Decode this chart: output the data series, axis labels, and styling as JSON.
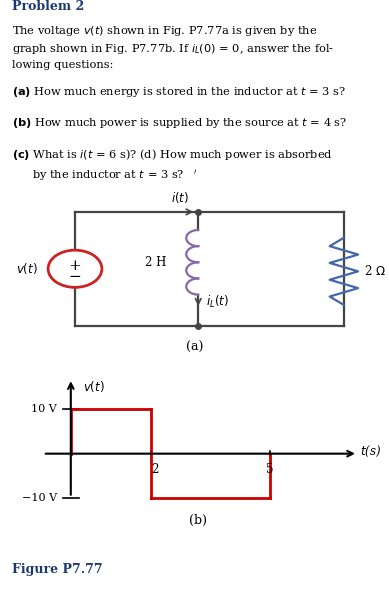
{
  "bg_color": "#ffffff",
  "text_color": "#000000",
  "title_color": "#1a3a6e",
  "figure_label_color": "#1a3a6e",
  "circuit": {
    "inductor_color": "#8866aa",
    "resistor_color": "#4466aa",
    "wire_color": "#444444",
    "source_color": "#cc2222"
  },
  "graph": {
    "waveform_color": "#cc0000",
    "xlim": [
      -0.8,
      7.2
    ],
    "ylim": [
      -16,
      18
    ]
  }
}
